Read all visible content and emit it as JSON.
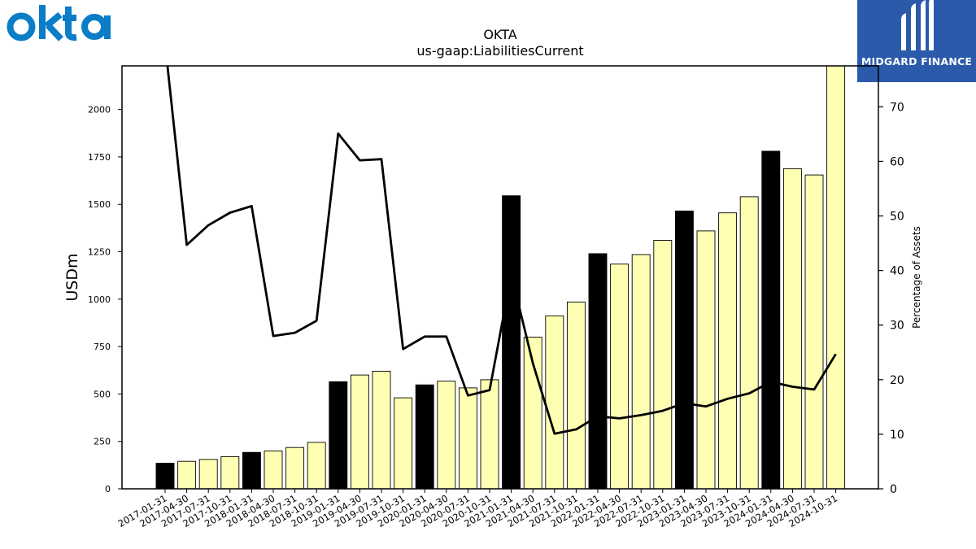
{
  "brand": {
    "left_logo": "okta",
    "right_logo": "MIDGARD FINANCE",
    "right_logo_color": "#2b5aaa",
    "left_logo_color": "#0a7dc6"
  },
  "chart_data": {
    "type": "bar",
    "title": "OKTA",
    "subtitle": "us-gaap:LiabilitiesCurrent",
    "ylabel": "USDm",
    "y2label": "Percentage of Assets",
    "ylim": [
      0,
      2230
    ],
    "y2lim": [
      0,
      77.5
    ],
    "yticks": [
      0,
      250,
      500,
      750,
      1000,
      1250,
      1500,
      1750,
      2000
    ],
    "y2ticks": [
      0,
      10,
      20,
      30,
      40,
      50,
      60,
      70
    ],
    "grid": false,
    "categories": [
      "2017-01-31",
      "2017-04-30",
      "2017-07-31",
      "2017-10-31",
      "2018-01-31",
      "2018-04-30",
      "2018-07-31",
      "2018-10-31",
      "2019-01-31",
      "2019-04-30",
      "2019-07-31",
      "2019-10-31",
      "2020-01-31",
      "2020-04-30",
      "2020-07-31",
      "2020-10-31",
      "2021-01-31",
      "2021-04-30",
      "2021-07-31",
      "2021-10-31",
      "2022-01-31",
      "2022-04-30",
      "2022-07-31",
      "2022-10-31",
      "2023-01-31",
      "2023-04-30",
      "2023-07-31",
      "2023-10-31",
      "2024-01-31",
      "2024-04-30",
      "2024-07-31",
      "2024-10-31"
    ],
    "series": [
      {
        "type": "bar",
        "values": [
          135,
          145,
          155,
          170,
          192,
          200,
          218,
          245,
          565,
          600,
          620,
          480,
          548,
          568,
          532,
          575,
          1545,
          800,
          912,
          985,
          1240,
          1185,
          1235,
          1310,
          1465,
          1360,
          1455,
          1540,
          1780,
          1688,
          1655,
          2230
        ],
        "fiscal_year_end_color": "#000000",
        "quarter_color": "#ffffb3"
      },
      {
        "type": "line",
        "axis": "right",
        "color": "#000000",
        "values": [
          81.5,
          44.7,
          48.3,
          50.6,
          51.8,
          28.0,
          28.6,
          30.8,
          65.1,
          60.2,
          60.4,
          25.6,
          27.9,
          27.9,
          17.1,
          18.1,
          39.3,
          23.0,
          10.1,
          10.9,
          13.3,
          12.9,
          13.5,
          14.3,
          15.7,
          15.1,
          16.5,
          17.5,
          19.6,
          18.7,
          18.2,
          24.7
        ]
      }
    ]
  }
}
